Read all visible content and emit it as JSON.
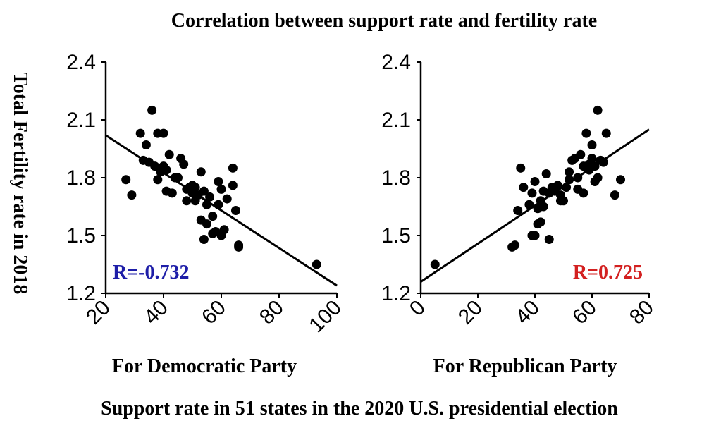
{
  "figure": {
    "title": "Correlation between support rate and fertility rate",
    "ylabel": "Total Fertility rate in 2018",
    "footer": "Support rate in 51 states in the 2020 U.S. presidential election"
  },
  "chart_data": [
    {
      "type": "scatter",
      "title": "",
      "xlabel": "For Democratic Party",
      "ylabel": "Total Fertility rate in 2018",
      "xlim": [
        20,
        100
      ],
      "ylim": [
        1.2,
        2.4
      ],
      "xticks": [
        "20",
        "40",
        "60",
        "80",
        "100"
      ],
      "yticks": [
        "1.2",
        "1.5",
        "1.8",
        "2.1",
        "2.4"
      ],
      "grid": false,
      "annotation": {
        "text": "R=-0.732",
        "color": "#1e1ea8"
      },
      "trendline": {
        "x": [
          20,
          100
        ],
        "y": [
          2.02,
          1.24
        ]
      },
      "points": [
        [
          27,
          1.79
        ],
        [
          29,
          1.71
        ],
        [
          32,
          2.03
        ],
        [
          33,
          1.89
        ],
        [
          34,
          1.97
        ],
        [
          35,
          1.88
        ],
        [
          36,
          2.15
        ],
        [
          37,
          1.86
        ],
        [
          38,
          1.79
        ],
        [
          38,
          2.03
        ],
        [
          39,
          1.83
        ],
        [
          40,
          1.86
        ],
        [
          40,
          2.03
        ],
        [
          41,
          1.73
        ],
        [
          41,
          1.84
        ],
        [
          42,
          1.92
        ],
        [
          43,
          1.72
        ],
        [
          45,
          1.8
        ],
        [
          46,
          1.9
        ],
        [
          47,
          1.87
        ],
        [
          48,
          1.68
        ],
        [
          49,
          1.75
        ],
        [
          50,
          1.72
        ],
        [
          50,
          1.76
        ],
        [
          51,
          1.68
        ],
        [
          51,
          1.75
        ],
        [
          52,
          1.71
        ],
        [
          53,
          1.83
        ],
        [
          53,
          1.58
        ],
        [
          54,
          1.48
        ],
        [
          54,
          1.73
        ],
        [
          55,
          1.66
        ],
        [
          55,
          1.56
        ],
        [
          56,
          1.7
        ],
        [
          57,
          1.6
        ],
        [
          57,
          1.51
        ],
        [
          58,
          1.52
        ],
        [
          59,
          1.66
        ],
        [
          59,
          1.78
        ],
        [
          60,
          1.5
        ],
        [
          60,
          1.74
        ],
        [
          61,
          1.53
        ],
        [
          62,
          1.69
        ],
        [
          64,
          1.76
        ],
        [
          64,
          1.85
        ],
        [
          65,
          1.63
        ],
        [
          66,
          1.44
        ],
        [
          66,
          1.45
        ],
        [
          93,
          1.35
        ],
        [
          44,
          1.8
        ],
        [
          48,
          1.74
        ]
      ]
    },
    {
      "type": "scatter",
      "title": "",
      "xlabel": "For Republican Party",
      "ylabel": "Total Fertility rate in 2018",
      "xlim": [
        0,
        80
      ],
      "ylim": [
        1.2,
        2.4
      ],
      "xticks": [
        "0",
        "20",
        "40",
        "60",
        "80"
      ],
      "yticks": [
        "1.2",
        "1.5",
        "1.8",
        "2.1",
        "2.4"
      ],
      "grid": false,
      "annotation": {
        "text": "R=0.725",
        "color": "#d32020"
      },
      "trendline": {
        "x": [
          0,
          80
        ],
        "y": [
          1.26,
          2.05
        ]
      },
      "points": [
        [
          5,
          1.35
        ],
        [
          32,
          1.44
        ],
        [
          33,
          1.45
        ],
        [
          34,
          1.63
        ],
        [
          35,
          1.85
        ],
        [
          36,
          1.75
        ],
        [
          38,
          1.66
        ],
        [
          39,
          1.5
        ],
        [
          39,
          1.72
        ],
        [
          40,
          1.5
        ],
        [
          40,
          1.78
        ],
        [
          41,
          1.56
        ],
        [
          41,
          1.64
        ],
        [
          42,
          1.68
        ],
        [
          42,
          1.57
        ],
        [
          43,
          1.73
        ],
        [
          43,
          1.65
        ],
        [
          44,
          1.82
        ],
        [
          45,
          1.48
        ],
        [
          45,
          1.72
        ],
        [
          46,
          1.75
        ],
        [
          47,
          1.73
        ],
        [
          48,
          1.76
        ],
        [
          49,
          1.71
        ],
        [
          49,
          1.68
        ],
        [
          50,
          1.68
        ],
        [
          51,
          1.75
        ],
        [
          52,
          1.83
        ],
        [
          52,
          1.79
        ],
        [
          53,
          1.89
        ],
        [
          54,
          1.9
        ],
        [
          55,
          1.74
        ],
        [
          55,
          1.8
        ],
        [
          56,
          1.92
        ],
        [
          57,
          1.72
        ],
        [
          57,
          1.86
        ],
        [
          58,
          1.85
        ],
        [
          58,
          2.03
        ],
        [
          59,
          1.84
        ],
        [
          59,
          1.87
        ],
        [
          60,
          1.9
        ],
        [
          60,
          1.97
        ],
        [
          61,
          1.78
        ],
        [
          61,
          1.86
        ],
        [
          62,
          2.15
        ],
        [
          62,
          1.8
        ],
        [
          63,
          1.89
        ],
        [
          64,
          1.88
        ],
        [
          65,
          2.03
        ],
        [
          68,
          1.71
        ],
        [
          70,
          1.79
        ]
      ]
    }
  ]
}
